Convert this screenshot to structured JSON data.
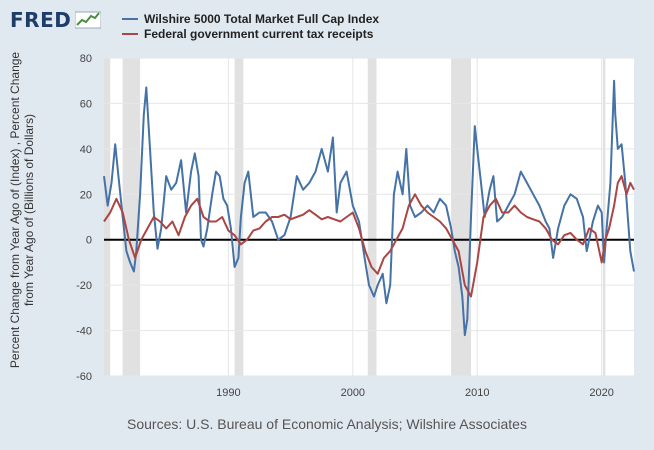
{
  "brand": {
    "name": "FRED",
    "icon": "chart-trend-icon"
  },
  "chart_data": {
    "type": "line",
    "xlabel": "",
    "ylabel": "Percent Change from Year Ago of (Index) , Percent Change from Year Ago of (Billions of Dollars)",
    "source": "Sources: U.S. Bureau of Economic Analysis; Wilshire Associates",
    "xlim": [
      1980,
      2022.6
    ],
    "ylim": [
      -60,
      80
    ],
    "x_ticks": [
      1990,
      2000,
      2010,
      2020
    ],
    "y_ticks": [
      -60,
      -40,
      -20,
      0,
      20,
      40,
      60,
      80
    ],
    "grid": true,
    "legend": "top",
    "recessions": [
      [
        1980.0,
        1980.5
      ],
      [
        1981.5,
        1982.9
      ],
      [
        1990.5,
        1991.2
      ],
      [
        2001.2,
        2001.9
      ],
      [
        2007.9,
        2009.5
      ],
      [
        2020.1,
        2020.3
      ]
    ],
    "series": [
      {
        "name": "Wilshire 5000 Total Market Full Cap Index",
        "color": "#4572a7",
        "x": [
          1980.0,
          1980.3,
          1980.6,
          1980.9,
          1981.2,
          1981.5,
          1981.8,
          1982.1,
          1982.4,
          1982.6,
          1982.9,
          1983.2,
          1983.4,
          1983.7,
          1984.0,
          1984.3,
          1984.6,
          1985.0,
          1985.4,
          1985.8,
          1986.2,
          1986.6,
          1987.0,
          1987.3,
          1987.6,
          1987.8,
          1988.0,
          1988.3,
          1988.7,
          1989.0,
          1989.3,
          1989.6,
          1989.9,
          1990.2,
          1990.5,
          1990.8,
          1991.0,
          1991.3,
          1991.6,
          1992.0,
          1992.5,
          1993.0,
          1993.5,
          1994.0,
          1994.5,
          1995.0,
          1995.5,
          1996.0,
          1996.5,
          1997.0,
          1997.5,
          1998.0,
          1998.4,
          1998.7,
          1999.0,
          1999.5,
          2000.0,
          2000.5,
          2001.0,
          2001.3,
          2001.7,
          2002.0,
          2002.4,
          2002.7,
          2003.0,
          2003.3,
          2003.6,
          2004.0,
          2004.3,
          2004.6,
          2005.0,
          2005.5,
          2006.0,
          2006.5,
          2007.0,
          2007.5,
          2007.9,
          2008.2,
          2008.5,
          2008.8,
          2009.0,
          2009.2,
          2009.5,
          2009.8,
          2010.0,
          2010.3,
          2010.6,
          2011.0,
          2011.3,
          2011.6,
          2012.0,
          2012.5,
          2013.0,
          2013.5,
          2014.0,
          2014.5,
          2015.0,
          2015.5,
          2015.8,
          2016.1,
          2016.5,
          2017.0,
          2017.5,
          2018.0,
          2018.5,
          2018.8,
          2019.0,
          2019.3,
          2019.7,
          2020.0,
          2020.2,
          2020.4,
          2020.7,
          2021.0,
          2021.1,
          2021.3,
          2021.6,
          2021.9,
          2022.1,
          2022.3,
          2022.6
        ],
        "values": [
          28,
          15,
          25,
          42,
          26,
          10,
          -5,
          -10,
          -14,
          -5,
          20,
          55,
          67,
          40,
          12,
          -4,
          5,
          28,
          22,
          25,
          35,
          12,
          30,
          38,
          28,
          0,
          -3,
          5,
          20,
          30,
          28,
          18,
          15,
          5,
          -12,
          -8,
          10,
          25,
          30,
          10,
          12,
          12,
          8,
          0,
          2,
          10,
          28,
          22,
          25,
          30,
          40,
          30,
          45,
          12,
          25,
          30,
          15,
          8,
          -10,
          -20,
          -25,
          -20,
          -15,
          -28,
          -20,
          20,
          30,
          20,
          40,
          15,
          10,
          12,
          15,
          12,
          18,
          15,
          5,
          -5,
          -12,
          -25,
          -42,
          -35,
          10,
          50,
          40,
          25,
          10,
          22,
          28,
          8,
          10,
          15,
          20,
          30,
          25,
          20,
          15,
          8,
          5,
          -8,
          5,
          15,
          20,
          18,
          10,
          -5,
          0,
          8,
          15,
          12,
          -10,
          5,
          25,
          70,
          55,
          40,
          42,
          25,
          10,
          -5,
          -14
        ]
      },
      {
        "name": "Federal government current tax receipts",
        "color": "#aa4643",
        "x": [
          1980.0,
          1980.5,
          1981.0,
          1981.5,
          1982.0,
          1982.5,
          1983.0,
          1983.5,
          1984.0,
          1984.5,
          1985.0,
          1985.5,
          1986.0,
          1986.5,
          1987.0,
          1987.5,
          1988.0,
          1988.5,
          1989.0,
          1989.5,
          1990.0,
          1990.5,
          1991.0,
          1991.5,
          1992.0,
          1992.5,
          1993.0,
          1993.5,
          1994.0,
          1994.5,
          1995.0,
          1995.5,
          1996.0,
          1996.5,
          1997.0,
          1997.5,
          1998.0,
          1998.5,
          1999.0,
          1999.5,
          2000.0,
          2000.5,
          2001.0,
          2001.5,
          2002.0,
          2002.5,
          2003.0,
          2003.5,
          2004.0,
          2004.5,
          2005.0,
          2005.5,
          2006.0,
          2006.5,
          2007.0,
          2007.5,
          2008.0,
          2008.5,
          2009.0,
          2009.5,
          2010.0,
          2010.5,
          2011.0,
          2011.5,
          2012.0,
          2012.5,
          2013.0,
          2013.5,
          2014.0,
          2014.5,
          2015.0,
          2015.5,
          2016.0,
          2016.5,
          2017.0,
          2017.5,
          2018.0,
          2018.5,
          2019.0,
          2019.5,
          2020.0,
          2020.3,
          2020.6,
          2021.0,
          2021.3,
          2021.6,
          2022.0,
          2022.3,
          2022.6
        ],
        "values": [
          8,
          12,
          18,
          12,
          0,
          -8,
          0,
          5,
          10,
          8,
          5,
          8,
          2,
          10,
          15,
          18,
          10,
          8,
          8,
          10,
          4,
          2,
          -2,
          0,
          4,
          5,
          8,
          10,
          10,
          11,
          9,
          10,
          11,
          13,
          11,
          9,
          10,
          9,
          8,
          10,
          12,
          5,
          -5,
          -12,
          -15,
          -8,
          -5,
          0,
          5,
          15,
          20,
          15,
          12,
          10,
          8,
          5,
          0,
          -5,
          -20,
          -25,
          -10,
          10,
          15,
          18,
          12,
          12,
          15,
          12,
          10,
          9,
          8,
          5,
          0,
          -2,
          2,
          3,
          0,
          -2,
          5,
          3,
          -10,
          0,
          5,
          15,
          25,
          28,
          20,
          25,
          22
        ]
      }
    ]
  }
}
